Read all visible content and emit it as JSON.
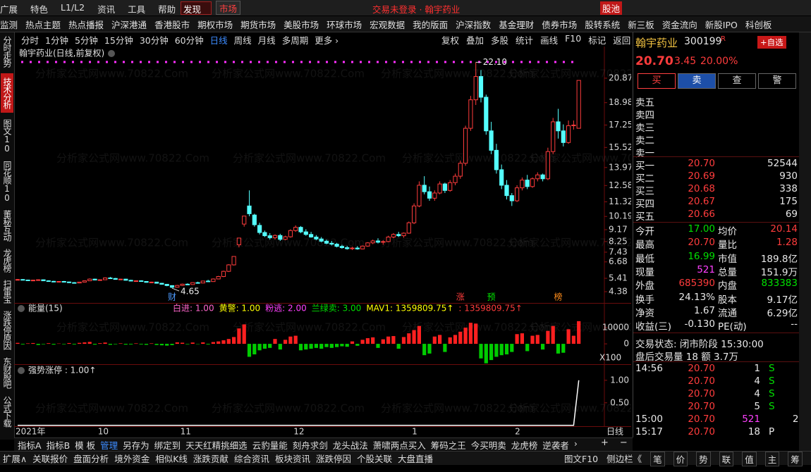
{
  "window": {
    "menu": [
      "广展",
      "特色",
      "L1/L2",
      "资讯",
      "工具",
      "帮助"
    ],
    "discover": "发现",
    "market": "市场",
    "title": "交易未登录 · 翰宇药业",
    "stock_pool": "股池"
  },
  "nav": [
    "监测",
    "热点主题",
    "热点播报",
    "沪深港通",
    "香港股市",
    "期权市场",
    "期货市场",
    "美股市场",
    "环球市场",
    "宏观数据",
    "我的版面",
    "沪深指数",
    "基金理财",
    "债券市场",
    "股转系统",
    "新三板",
    "资金流向",
    "新股IPO",
    "科创板"
  ],
  "side_tabs": [
    "分时走势",
    "技术分析",
    "图文10",
    "同花顺10",
    "董秘互动",
    "龙虎榜",
    "扫雷宝",
    "涨跌停原因",
    "东财股吧",
    "公式下载"
  ],
  "side_active": 1,
  "periods": [
    "分时",
    "1分钟",
    "5分钟",
    "15分钟",
    "30分钟",
    "60分钟",
    "日线",
    "周线",
    "月线",
    "多周期",
    "更多 ›"
  ],
  "period_active": 6,
  "tools": [
    "复权",
    "叠加",
    "多股",
    "统计",
    "画线",
    "F10",
    "标记",
    "返回"
  ],
  "watermark": "分析家公式网www.70822.Com",
  "chart_data": [
    {
      "type": "candlestick",
      "title": "翰宇药业(日线,前复权)",
      "categories": [
        "2021年",
        null,
        null,
        null,
        null,
        null,
        null,
        null,
        null,
        null,
        null,
        null,
        null,
        null,
        null,
        null,
        "10",
        null,
        null,
        null,
        null,
        null,
        null,
        null,
        null,
        null,
        null,
        null,
        null,
        null,
        null,
        null,
        "11",
        null,
        null,
        null,
        null,
        null,
        null,
        null,
        null,
        null,
        null,
        null,
        null,
        null,
        null,
        null,
        null,
        null,
        null,
        null,
        null,
        null,
        "12",
        null,
        null,
        null,
        null,
        null,
        null,
        null,
        null,
        null,
        null,
        null,
        null,
        null,
        null,
        null,
        null,
        null,
        null,
        null,
        null,
        null,
        null,
        "1",
        null,
        null,
        null,
        null,
        null,
        null,
        null,
        null,
        null,
        null,
        null,
        null,
        null,
        null,
        null,
        null,
        null,
        null,
        null,
        "2",
        null,
        null,
        null,
        null,
        null,
        null,
        null,
        null,
        null,
        null,
        null,
        null
      ],
      "ohlc": [
        [
          5.3,
          5.36,
          5.25,
          5.32
        ],
        [
          5.32,
          5.35,
          5.26,
          5.28
        ],
        [
          5.28,
          5.31,
          5.22,
          5.25
        ],
        [
          5.25,
          5.3,
          5.2,
          5.27
        ],
        [
          5.27,
          5.33,
          5.24,
          5.3
        ],
        [
          5.3,
          5.32,
          5.21,
          5.22
        ],
        [
          5.22,
          5.26,
          5.16,
          5.18
        ],
        [
          5.18,
          5.22,
          5.12,
          5.15
        ],
        [
          5.15,
          5.19,
          5.1,
          5.17
        ],
        [
          5.17,
          5.21,
          5.11,
          5.13
        ],
        [
          5.13,
          5.15,
          5.05,
          5.08
        ],
        [
          5.08,
          5.12,
          5.02,
          5.05
        ],
        [
          5.05,
          5.14,
          5.03,
          5.12
        ],
        [
          5.12,
          5.24,
          5.1,
          5.22
        ],
        [
          5.22,
          5.4,
          5.2,
          5.35
        ],
        [
          5.35,
          5.38,
          5.25,
          5.28
        ],
        [
          5.28,
          5.33,
          5.22,
          5.3
        ],
        [
          5.3,
          5.48,
          5.28,
          5.44
        ],
        [
          5.44,
          5.52,
          5.36,
          5.4
        ],
        [
          5.4,
          5.44,
          5.3,
          5.33
        ],
        [
          5.33,
          5.38,
          5.28,
          5.35
        ],
        [
          5.35,
          5.37,
          5.24,
          5.26
        ],
        [
          5.26,
          5.3,
          5.18,
          5.2
        ],
        [
          5.2,
          5.25,
          5.14,
          5.22
        ],
        [
          5.22,
          5.26,
          5.15,
          5.17
        ],
        [
          5.17,
          5.2,
          5.08,
          5.1
        ],
        [
          5.1,
          5.15,
          5.05,
          5.12
        ],
        [
          5.12,
          5.14,
          5.0,
          5.03
        ],
        [
          5.03,
          5.06,
          4.92,
          4.95
        ],
        [
          4.95,
          4.98,
          4.8,
          4.85
        ],
        [
          4.85,
          4.88,
          4.65,
          4.72
        ],
        [
          4.72,
          4.9,
          4.7,
          4.86
        ],
        [
          4.86,
          5.0,
          4.82,
          4.96
        ],
        [
          4.96,
          5.02,
          4.9,
          4.93
        ],
        [
          4.93,
          5.1,
          4.91,
          5.08
        ],
        [
          5.08,
          5.15,
          5.0,
          5.05
        ],
        [
          5.05,
          5.22,
          5.03,
          5.2
        ],
        [
          5.2,
          5.3,
          5.12,
          5.16
        ],
        [
          5.16,
          5.4,
          5.15,
          5.36
        ],
        [
          5.36,
          5.6,
          5.33,
          5.55
        ],
        [
          5.55,
          6.0,
          5.5,
          5.95
        ],
        [
          5.95,
          6.5,
          5.9,
          6.45
        ],
        [
          6.45,
          7.1,
          6.4,
          7.1
        ],
        [
          8.0,
          8.52,
          7.8,
          8.52
        ],
        [
          9.6,
          10.22,
          9.4,
          10.22
        ],
        [
          11.0,
          12.2,
          10.2,
          10.4
        ],
        [
          10.3,
          10.4,
          9.4,
          9.55
        ],
        [
          9.5,
          9.7,
          8.8,
          8.95
        ],
        [
          8.95,
          9.1,
          8.6,
          8.7
        ],
        [
          8.7,
          8.9,
          8.4,
          8.55
        ],
        [
          8.55,
          8.8,
          8.4,
          8.72
        ],
        [
          8.72,
          8.85,
          8.3,
          8.42
        ],
        [
          8.42,
          8.7,
          8.35,
          8.62
        ],
        [
          8.62,
          9.2,
          8.55,
          9.1
        ],
        [
          9.1,
          9.5,
          9.0,
          9.35
        ],
        [
          9.35,
          9.45,
          8.9,
          9.0
        ],
        [
          9.0,
          9.2,
          8.7,
          8.8
        ],
        [
          8.8,
          9.0,
          8.55,
          8.6
        ],
        [
          8.6,
          8.75,
          8.35,
          8.45
        ],
        [
          8.45,
          8.6,
          8.2,
          8.28
        ],
        [
          8.28,
          8.4,
          8.05,
          8.12
        ],
        [
          8.12,
          8.3,
          7.95,
          8.05
        ],
        [
          8.05,
          8.15,
          7.8,
          7.88
        ],
        [
          7.88,
          8.0,
          7.7,
          7.78
        ],
        [
          7.78,
          7.92,
          7.62,
          7.7
        ],
        [
          7.7,
          7.85,
          7.6,
          7.75
        ],
        [
          7.75,
          7.9,
          7.62,
          7.68
        ],
        [
          7.68,
          7.95,
          7.65,
          7.9
        ],
        [
          7.9,
          8.2,
          7.85,
          8.15
        ],
        [
          8.15,
          8.4,
          8.05,
          8.3
        ],
        [
          8.3,
          8.5,
          8.1,
          8.2
        ],
        [
          8.2,
          8.35,
          8.0,
          8.25
        ],
        [
          8.25,
          8.7,
          8.2,
          8.6
        ],
        [
          8.6,
          8.9,
          8.5,
          8.8
        ],
        [
          8.8,
          9.0,
          8.6,
          8.7
        ],
        [
          8.7,
          8.95,
          8.55,
          8.9
        ],
        [
          8.9,
          9.8,
          8.85,
          9.7
        ],
        [
          9.7,
          11.2,
          9.6,
          11.0
        ],
        [
          11.0,
          12.9,
          10.9,
          12.6
        ],
        [
          12.6,
          13.3,
          11.9,
          12.1
        ],
        [
          12.1,
          12.5,
          11.4,
          11.6
        ],
        [
          11.6,
          12.2,
          11.4,
          12.0
        ],
        [
          12.0,
          12.9,
          11.9,
          12.7
        ],
        [
          12.7,
          12.8,
          12.0,
          12.2
        ],
        [
          12.2,
          13.0,
          12.1,
          12.8
        ],
        [
          12.8,
          13.5,
          12.6,
          13.3
        ],
        [
          13.3,
          14.5,
          13.1,
          14.3
        ],
        [
          14.3,
          17.2,
          14.1,
          17.0
        ],
        [
          17.0,
          19.5,
          16.8,
          19.2
        ],
        [
          19.2,
          22.1,
          18.8,
          21.0
        ],
        [
          21.0,
          21.5,
          19.0,
          19.4
        ],
        [
          19.4,
          19.6,
          16.5,
          16.8
        ],
        [
          16.8,
          17.5,
          15.0,
          15.3
        ],
        [
          15.3,
          15.8,
          13.5,
          13.8
        ],
        [
          13.8,
          14.2,
          12.3,
          12.6
        ],
        [
          12.6,
          13.0,
          11.5,
          11.8
        ],
        [
          11.8,
          12.0,
          11.0,
          11.4
        ],
        [
          11.4,
          12.6,
          11.3,
          12.4
        ],
        [
          12.4,
          13.2,
          12.2,
          13.0
        ],
        [
          13.0,
          13.4,
          12.3,
          12.5
        ],
        [
          12.5,
          13.2,
          12.4,
          13.1
        ],
        [
          13.1,
          13.6,
          12.9,
          13.4
        ],
        [
          13.4,
          13.5,
          12.9,
          13.1
        ],
        [
          13.1,
          15.5,
          13.0,
          15.2
        ],
        [
          15.2,
          17.8,
          15.0,
          17.5
        ],
        [
          17.5,
          18.5,
          16.2,
          16.8
        ],
        [
          16.8,
          17.3,
          15.6,
          15.9
        ],
        [
          15.9,
          17.6,
          15.8,
          17.2
        ],
        [
          17.2,
          17.6,
          16.9,
          17.25
        ],
        [
          17.0,
          20.7,
          16.99,
          20.7
        ]
      ],
      "up_color": "#ff3c3c",
      "down_color": "#54ffff",
      "ylim": [
        3.51,
        23.1
      ],
      "yticks": [
        20.87,
        18.98,
        17.25,
        15.52,
        13.97,
        12.58,
        11.32,
        10.19,
        9.17,
        8.25,
        7.43,
        6.68,
        5.41,
        4.38
      ],
      "high_label": {
        "index": 89,
        "value": 22.1,
        "label": "22.10"
      },
      "low_label": {
        "index": 30,
        "value": 4.65
      },
      "markers": [
        {
          "index": 30,
          "text": "财",
          "color": "#4d9bff"
        },
        {
          "index": 86,
          "text": "涨",
          "color": "#ff3c3c"
        },
        {
          "index": 92,
          "text": "预",
          "color": "#00e000"
        },
        {
          "index": 105,
          "text": "榜",
          "color": "#ff8c1a"
        }
      ]
    },
    {
      "type": "bar",
      "title": "能量(15)",
      "legend": [
        {
          "name": "白进: 1.00",
          "color": "#ff66cc"
        },
        {
          "name": "黄警: 1.00",
          "color": "#ffff00"
        },
        {
          "name": "粉逃: 2.00",
          "color": "#ff40ff"
        },
        {
          "name": "兰绿卖: 3.00",
          "color": "#00e000"
        },
        {
          "name": "MAV1: 1359809.75↑",
          "color": "#ffff00"
        },
        {
          "name": ": 1359809.75↑",
          "color": "#ff3c3c"
        }
      ],
      "values": [
        600,
        -400,
        300,
        500,
        -700,
        -300,
        400,
        -500,
        200,
        -300,
        500,
        -400,
        600,
        900,
        1200,
        -500,
        400,
        800,
        -600,
        -300,
        300,
        -500,
        -400,
        300,
        -400,
        -600,
        300,
        -700,
        -900,
        -1100,
        -800,
        900,
        700,
        -300,
        800,
        -200,
        900,
        -400,
        1100,
        1500,
        2200,
        3000,
        4200,
        9500,
        12000,
        -8000,
        -6500,
        -4000,
        -3000,
        -2500,
        3000,
        -3500,
        2500,
        4500,
        5000,
        -4000,
        -3500,
        -3000,
        -2500,
        -3000,
        -2000,
        -2500,
        -2000,
        -1500,
        -1800,
        1500,
        -1200,
        2500,
        3500,
        4000,
        -2500,
        2800,
        4500,
        4800,
        -3000,
        4200,
        6500,
        8500,
        11000,
        -7000,
        -6000,
        4500,
        5500,
        -5000,
        4000,
        5500,
        7500,
        10000,
        13000,
        12500,
        -9000,
        -12000,
        -10000,
        -8000,
        -7000,
        -6500,
        -5000,
        6000,
        6500,
        -4500,
        5000,
        5500,
        -3500,
        8000,
        11000,
        -6000,
        -5500,
        9000,
        5000,
        14000
      ],
      "up_color": "#ff2020",
      "down_color": "#00cc00",
      "ylim": [
        -11700,
        20900
      ],
      "yticks": [
        0,
        10000
      ],
      "unit": "X100"
    },
    {
      "type": "line",
      "title": "强势涨停 : 1.00↑",
      "values": [
        0,
        0,
        0,
        0,
        0,
        0,
        0,
        0,
        0,
        0,
        0,
        0,
        0,
        0,
        0,
        0,
        0,
        0,
        0,
        0,
        0,
        0,
        0,
        0,
        0,
        0,
        0,
        0,
        0,
        0,
        0,
        0,
        0,
        0,
        0,
        0,
        0,
        0,
        0,
        0,
        0,
        0,
        0,
        0,
        0,
        0,
        0,
        0,
        0,
        0,
        0,
        0,
        0,
        0,
        0,
        0,
        0,
        0,
        0,
        0,
        0,
        0,
        0,
        0,
        0,
        0,
        0,
        0,
        0,
        0,
        0,
        0,
        0,
        0,
        0,
        0,
        0,
        0,
        0,
        0,
        0,
        0,
        0,
        0,
        0,
        0,
        0,
        0,
        0,
        0,
        0,
        0,
        0,
        0,
        0,
        0,
        0,
        0,
        0,
        0,
        0,
        0,
        0,
        0,
        0,
        0,
        0,
        0,
        0,
        1
      ],
      "color": "#ffffff",
      "ylim": [
        -0.02,
        1.31
      ],
      "yticks": [
        {
          "value": 0.5,
          "label": "0.50"
        },
        {
          "value": 1,
          "label": "1.00"
        }
      ]
    }
  ],
  "x_axis_period": "日线",
  "formula_tabs": [
    "指标A",
    "指标B",
    "模 板",
    "管理",
    "另存为",
    "绑定到",
    "天天红精挑细选",
    "云豹量能",
    "刻舟求剑",
    "龙头战法",
    "萧啸两点买入",
    "筹码之王",
    "今买明卖",
    "龙虎榜",
    "逆袭者",
    "›"
  ],
  "formula_active": 3,
  "zoom": [
    "+",
    "−"
  ],
  "status_left": [
    "扩展∧",
    "关联报价",
    "盘面分析",
    "境外资金",
    "相似K线",
    "涨跌贡献",
    "综合资讯",
    "板块资讯",
    "涨跌停因",
    "个股关联",
    "大盘直播"
  ],
  "status_right": [
    "图文F10",
    "侧边栏《",
    "笔",
    "价",
    "势",
    "联",
    "值",
    "主",
    "筹"
  ],
  "quote": {
    "name": "翰宇药业",
    "code": "300199",
    "flag": "R",
    "add": "+自选",
    "price": "20.70",
    "change": "3.45",
    "pct": "20.00%",
    "buttons": [
      "买",
      "卖",
      "查",
      "警"
    ],
    "asks": [
      "卖五",
      "卖四",
      "卖三",
      "卖二",
      "卖一"
    ],
    "bids": [
      [
        "买一",
        "20.70",
        "52544"
      ],
      [
        "买二",
        "20.69",
        "930"
      ],
      [
        "买三",
        "20.68",
        "338"
      ],
      [
        "买四",
        "20.67",
        "175"
      ],
      [
        "买五",
        "20.66",
        "69"
      ]
    ],
    "stats": [
      [
        "今开",
        "17.00",
        "均价",
        "20.14"
      ],
      [
        "最高",
        "20.70",
        "量比",
        "1.28"
      ],
      [
        "最低",
        "16.99",
        "市值",
        "189.8亿"
      ],
      [
        "现量",
        "521",
        "总量",
        "151.9万"
      ],
      [
        "外盘",
        "685390",
        "内盘",
        "833383"
      ],
      [
        "换手",
        "24.13%",
        "股本",
        "9.17亿"
      ],
      [
        "净资",
        "1.67",
        "流通",
        "6.29亿"
      ],
      [
        "收益(三)",
        "-0.130",
        "PE(动)",
        "--"
      ]
    ],
    "stat_tones": [
      [
        "g",
        "r"
      ],
      [
        "r",
        "r"
      ],
      [
        "g",
        "w"
      ],
      [
        "m",
        "w"
      ],
      [
        "r",
        "g"
      ],
      [
        "w",
        "w"
      ],
      [
        "w",
        "w"
      ],
      [
        "w",
        "w"
      ]
    ],
    "state": "交易状态: 闭市阶段 15:30:00",
    "after": "盘后交易量 18 额 3.7万",
    "ticks": [
      [
        "14:56",
        "20.70",
        "1",
        "S",
        null
      ],
      [
        null,
        "20.70",
        "4",
        "S",
        "3"
      ],
      [
        null,
        "20.70",
        "4",
        "S",
        null
      ],
      [
        null,
        "20.70",
        "5",
        "S",
        "1"
      ],
      [
        "15:00",
        "20.70",
        "521",
        null,
        "27"
      ],
      [
        "15:17",
        "20.70",
        "18",
        "P",
        "1"
      ]
    ]
  }
}
